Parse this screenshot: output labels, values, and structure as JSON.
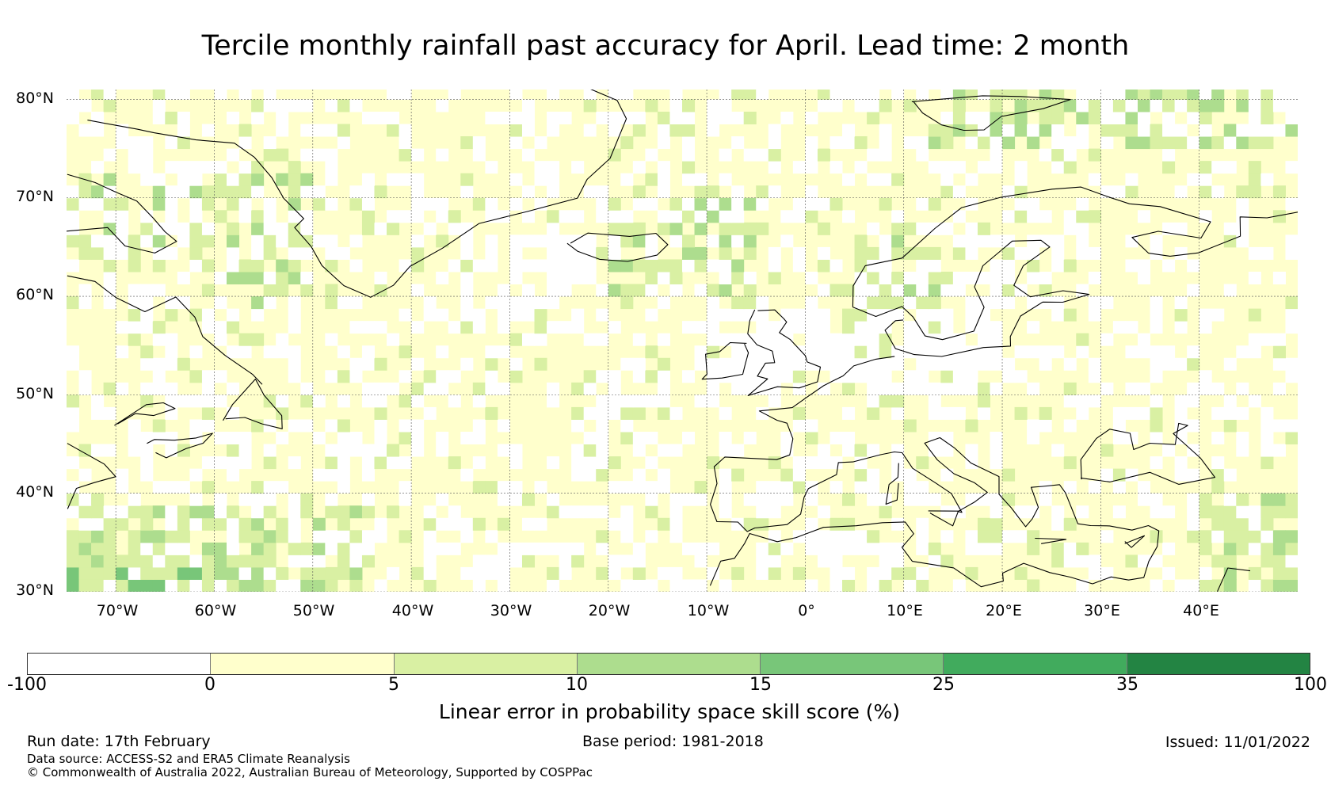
{
  "title": "Tercile monthly rainfall past accuracy for April. Lead time: 2 month",
  "map": {
    "lon_range": [
      -75,
      50
    ],
    "lat_range": [
      30,
      81
    ],
    "lat_labels": [
      "80°N",
      "70°N",
      "60°N",
      "50°N",
      "40°N",
      "30°N"
    ],
    "lat_values": [
      80,
      70,
      60,
      50,
      40,
      30
    ],
    "lon_labels": [
      "70°W",
      "60°W",
      "50°W",
      "40°W",
      "30°W",
      "20°W",
      "10°W",
      "0°",
      "10°E",
      "20°E",
      "30°E",
      "40°E"
    ],
    "lon_values": [
      -70,
      -60,
      -50,
      -40,
      -30,
      -20,
      -10,
      0,
      10,
      20,
      30,
      40
    ]
  },
  "colorbar": {
    "ticks": [
      "-100",
      "0",
      "5",
      "10",
      "15",
      "25",
      "35",
      "100"
    ],
    "colors": [
      "#ffffff",
      "#ffffcc",
      "#d9f0a3",
      "#addd8e",
      "#78c679",
      "#41ab5d",
      "#238443"
    ],
    "label": "Linear error in probability space skill score (%)"
  },
  "footer": {
    "run_date": "Run date: 17th February",
    "base_period": "Base period: 1981-2018",
    "issued": "Issued: 11/01/2022",
    "data_source": "Data source: ACCESS-S2 and ERA5 Climate Reanalysis",
    "copyright": "© Commonwealth of Australia 2022, Australian Bureau of Meteorology, Supported by COSPPac"
  }
}
